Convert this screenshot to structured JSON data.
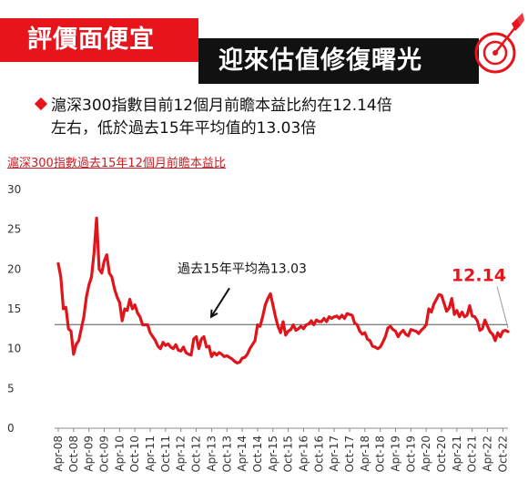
{
  "header": {
    "title_red": "評價面便宜",
    "title_black": "迎來估值修復曙光",
    "icon": "target-arrow-icon",
    "accent_color": "#e8141b"
  },
  "bullet": {
    "line1": "滬深300指數目前12個月前瞻本益比約在12.14倍",
    "line2": "左右，低於過去15年平均值的13.03倍"
  },
  "chart_data": {
    "type": "line",
    "title": "滬深300指數過去15年12個月前瞻本益比",
    "xlabel": "",
    "ylabel": "",
    "ylim": [
      0,
      30
    ],
    "yticks": [
      0,
      5,
      10,
      15,
      20,
      25,
      30
    ],
    "x_tick_labels": [
      "Apr-08",
      "Oct-08",
      "Apr-09",
      "Oct-09",
      "Apr-10",
      "Oct-10",
      "Apr-11",
      "Oct-11",
      "Apr-12",
      "Oct-12",
      "Apr-13",
      "Oct-13",
      "Apr-14",
      "Oct-14",
      "Apr-15",
      "Oct-15",
      "Apr-16",
      "Oct-16",
      "Apr-17",
      "Oct-17",
      "Apr-18",
      "Oct-18",
      "Apr-19",
      "Oct-19",
      "Apr-20",
      "Oct-20",
      "Apr-21",
      "Oct-21",
      "Apr-22",
      "Oct-22"
    ],
    "average": {
      "value": 13.03,
      "label": "過去15年平均為13.03"
    },
    "last_value_label": "12.14",
    "series_color": "#e0141b",
    "average_color": "#555555",
    "grid": false,
    "series": [
      {
        "points": [
          [
            "2008-04",
            20.7
          ],
          [
            "2008-05",
            19.0
          ],
          [
            "2008-06",
            15.0
          ],
          [
            "2008-07",
            15.2
          ],
          [
            "2008-08",
            12.5
          ],
          [
            "2008-09",
            12.2
          ],
          [
            "2008-10",
            9.3
          ],
          [
            "2008-11",
            10.5
          ],
          [
            "2008-12",
            11.0
          ],
          [
            "2009-01",
            12.5
          ],
          [
            "2009-02",
            14.0
          ],
          [
            "2009-03",
            16.5
          ],
          [
            "2009-04",
            18.0
          ],
          [
            "2009-05",
            19.0
          ],
          [
            "2009-06",
            22.0
          ],
          [
            "2009-07",
            26.4
          ],
          [
            "2009-08",
            20.0
          ],
          [
            "2009-09",
            19.5
          ],
          [
            "2009-10",
            21.0
          ],
          [
            "2009-11",
            21.8
          ],
          [
            "2009-12",
            19.5
          ],
          [
            "2010-01",
            19.0
          ],
          [
            "2010-02",
            17.5
          ],
          [
            "2010-03",
            16.5
          ],
          [
            "2010-04",
            15.8
          ],
          [
            "2010-05",
            13.5
          ],
          [
            "2010-06",
            15.0
          ],
          [
            "2010-07",
            14.8
          ],
          [
            "2010-08",
            16.2
          ],
          [
            "2010-09",
            15.0
          ],
          [
            "2010-10",
            15.5
          ],
          [
            "2010-11",
            14.5
          ],
          [
            "2010-12",
            14.0
          ],
          [
            "2011-01",
            13.0
          ],
          [
            "2011-02",
            13.0
          ],
          [
            "2011-03",
            13.0
          ],
          [
            "2011-04",
            12.0
          ],
          [
            "2011-05",
            11.5
          ],
          [
            "2011-06",
            11.0
          ],
          [
            "2011-07",
            10.3
          ],
          [
            "2011-08",
            10.0
          ],
          [
            "2011-09",
            10.8
          ],
          [
            "2011-10",
            10.4
          ],
          [
            "2011-11",
            10.6
          ],
          [
            "2011-12",
            10.2
          ],
          [
            "2012-01",
            10.0
          ],
          [
            "2012-02",
            10.5
          ],
          [
            "2012-03",
            9.8
          ],
          [
            "2012-04",
            9.7
          ],
          [
            "2012-05",
            10.2
          ],
          [
            "2012-06",
            9.5
          ],
          [
            "2012-07",
            9.3
          ],
          [
            "2012-08",
            9.2
          ],
          [
            "2012-09",
            11.2
          ],
          [
            "2012-10",
            11.5
          ],
          [
            "2012-11",
            10.0
          ],
          [
            "2012-12",
            11.2
          ],
          [
            "2013-01",
            11.5
          ],
          [
            "2013-02",
            10.2
          ],
          [
            "2013-03",
            10.3
          ],
          [
            "2013-04",
            9.0
          ],
          [
            "2013-05",
            9.5
          ],
          [
            "2013-06",
            9.2
          ],
          [
            "2013-07",
            9.5
          ],
          [
            "2013-08",
            9.3
          ],
          [
            "2013-09",
            9.0
          ],
          [
            "2013-10",
            9.1
          ],
          [
            "2013-11",
            8.9
          ],
          [
            "2013-12",
            8.7
          ],
          [
            "2014-01",
            8.4
          ],
          [
            "2014-02",
            8.2
          ],
          [
            "2014-03",
            8.3
          ],
          [
            "2014-04",
            8.8
          ],
          [
            "2014-05",
            8.9
          ],
          [
            "2014-06",
            9.3
          ],
          [
            "2014-07",
            10.0
          ],
          [
            "2014-08",
            10.5
          ],
          [
            "2014-09",
            11.0
          ],
          [
            "2014-10",
            13.0
          ],
          [
            "2014-11",
            12.8
          ],
          [
            "2014-12",
            14.0
          ],
          [
            "2015-01",
            15.5
          ],
          [
            "2015-02",
            16.3
          ],
          [
            "2015-03",
            16.9
          ],
          [
            "2015-04",
            15.5
          ],
          [
            "2015-05",
            14.0
          ],
          [
            "2015-06",
            12.8
          ],
          [
            "2015-07",
            12.0
          ],
          [
            "2015-08",
            13.4
          ],
          [
            "2015-09",
            11.7
          ],
          [
            "2015-10",
            12.2
          ],
          [
            "2015-11",
            12.4
          ],
          [
            "2015-12",
            13.0
          ],
          [
            "2016-01",
            12.3
          ],
          [
            "2016-02",
            12.5
          ],
          [
            "2016-03",
            12.8
          ],
          [
            "2016-04",
            12.5
          ],
          [
            "2016-05",
            13.0
          ],
          [
            "2016-06",
            13.1
          ],
          [
            "2016-07",
            13.5
          ],
          [
            "2016-08",
            13.0
          ],
          [
            "2016-09",
            13.6
          ],
          [
            "2016-10",
            13.4
          ],
          [
            "2016-11",
            13.4
          ],
          [
            "2016-12",
            13.8
          ],
          [
            "2017-01",
            13.4
          ],
          [
            "2017-02",
            14.0
          ],
          [
            "2017-03",
            13.8
          ],
          [
            "2017-04",
            14.0
          ],
          [
            "2017-05",
            14.1
          ],
          [
            "2017-06",
            13.8
          ],
          [
            "2017-07",
            14.2
          ],
          [
            "2017-08",
            13.8
          ],
          [
            "2017-09",
            14.4
          ],
          [
            "2017-10",
            14.3
          ],
          [
            "2017-11",
            14.2
          ],
          [
            "2017-12",
            13.2
          ],
          [
            "2018-01",
            13.0
          ],
          [
            "2018-02",
            12.2
          ],
          [
            "2018-03",
            11.8
          ],
          [
            "2018-04",
            12.0
          ],
          [
            "2018-05",
            11.2
          ],
          [
            "2018-06",
            11.0
          ],
          [
            "2018-07",
            10.3
          ],
          [
            "2018-08",
            10.2
          ],
          [
            "2018-09",
            10.0
          ],
          [
            "2018-10",
            10.2
          ],
          [
            "2018-11",
            10.8
          ],
          [
            "2018-12",
            11.5
          ],
          [
            "2019-01",
            12.6
          ],
          [
            "2019-02",
            12.8
          ],
          [
            "2019-03",
            12.4
          ],
          [
            "2019-04",
            12.2
          ],
          [
            "2019-05",
            11.5
          ],
          [
            "2019-06",
            12.0
          ],
          [
            "2019-07",
            12.3
          ],
          [
            "2019-08",
            11.8
          ],
          [
            "2019-09",
            11.6
          ],
          [
            "2019-10",
            12.4
          ],
          [
            "2019-11",
            12.3
          ],
          [
            "2019-12",
            12.2
          ],
          [
            "2020-01",
            11.9
          ],
          [
            "2020-02",
            12.3
          ],
          [
            "2020-03",
            12.6
          ],
          [
            "2020-04",
            13.0
          ],
          [
            "2020-05",
            15.0
          ],
          [
            "2020-06",
            14.6
          ],
          [
            "2020-07",
            15.6
          ],
          [
            "2020-08",
            16.2
          ],
          [
            "2020-09",
            16.8
          ],
          [
            "2020-10",
            16.7
          ],
          [
            "2020-11",
            15.7
          ],
          [
            "2020-12",
            14.7
          ],
          [
            "2021-01",
            15.1
          ],
          [
            "2021-02",
            16.3
          ],
          [
            "2021-03",
            14.3
          ],
          [
            "2021-04",
            14.8
          ],
          [
            "2021-05",
            14.0
          ],
          [
            "2021-06",
            14.6
          ],
          [
            "2021-07",
            14.0
          ],
          [
            "2021-08",
            14.2
          ],
          [
            "2021-09",
            15.4
          ],
          [
            "2021-10",
            14.1
          ],
          [
            "2021-11",
            14.0
          ],
          [
            "2021-12",
            13.5
          ],
          [
            "2022-01",
            12.3
          ],
          [
            "2022-02",
            12.5
          ],
          [
            "2022-03",
            13.6
          ],
          [
            "2022-04",
            12.8
          ],
          [
            "2022-05",
            12.1
          ],
          [
            "2022-06",
            11.8
          ],
          [
            "2022-07",
            11.0
          ],
          [
            "2022-08",
            12.0
          ],
          [
            "2022-09",
            11.5
          ],
          [
            "2022-10",
            12.2
          ],
          [
            "2022-11",
            12.3
          ],
          [
            "2022-12",
            12.14
          ]
        ]
      }
    ]
  }
}
